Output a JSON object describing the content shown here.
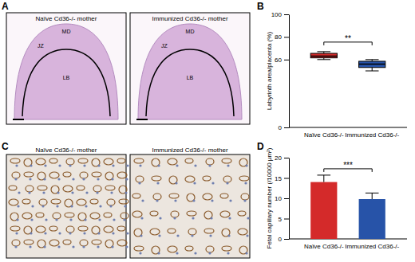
{
  "panels": {
    "labels": [
      "A",
      "B",
      "C",
      "D"
    ],
    "images": {
      "captions": [
        "Naïve Cd36-/- mother",
        "Immunized Cd36-/- mother"
      ],
      "regions": [
        "MD",
        "JZ",
        "LB"
      ]
    }
  },
  "chart_data": [
    {
      "type": "box",
      "categories": [
        "Naïve Cd36-/-",
        "Immunized Cd36-/-"
      ],
      "min": [
        60,
        50
      ],
      "q1": [
        61.5,
        53
      ],
      "median": [
        63,
        56
      ],
      "q3": [
        65.5,
        58.5
      ],
      "max": [
        67,
        60
      ],
      "colors": [
        "#d42a2a",
        "#2753a8"
      ],
      "y_label": "Labyrinth area/placenta (%)",
      "ylim": [
        0,
        100
      ],
      "yticks": [
        0,
        60,
        80,
        100
      ],
      "annotations": [
        "**"
      ]
    },
    {
      "type": "bar",
      "categories": [
        "Naïve Cd36-/-",
        "Immunized Cd36-/-"
      ],
      "values": [
        14,
        9.8
      ],
      "errors": [
        1.7,
        1.5
      ],
      "colors": [
        "#d42a2a",
        "#2753a8"
      ],
      "y_label": "Fetal capillary number (/10000 µm²)",
      "ylim": [
        0,
        20
      ],
      "yticks": [
        0,
        5,
        10,
        15,
        20
      ],
      "annotations": [
        "***"
      ]
    }
  ]
}
